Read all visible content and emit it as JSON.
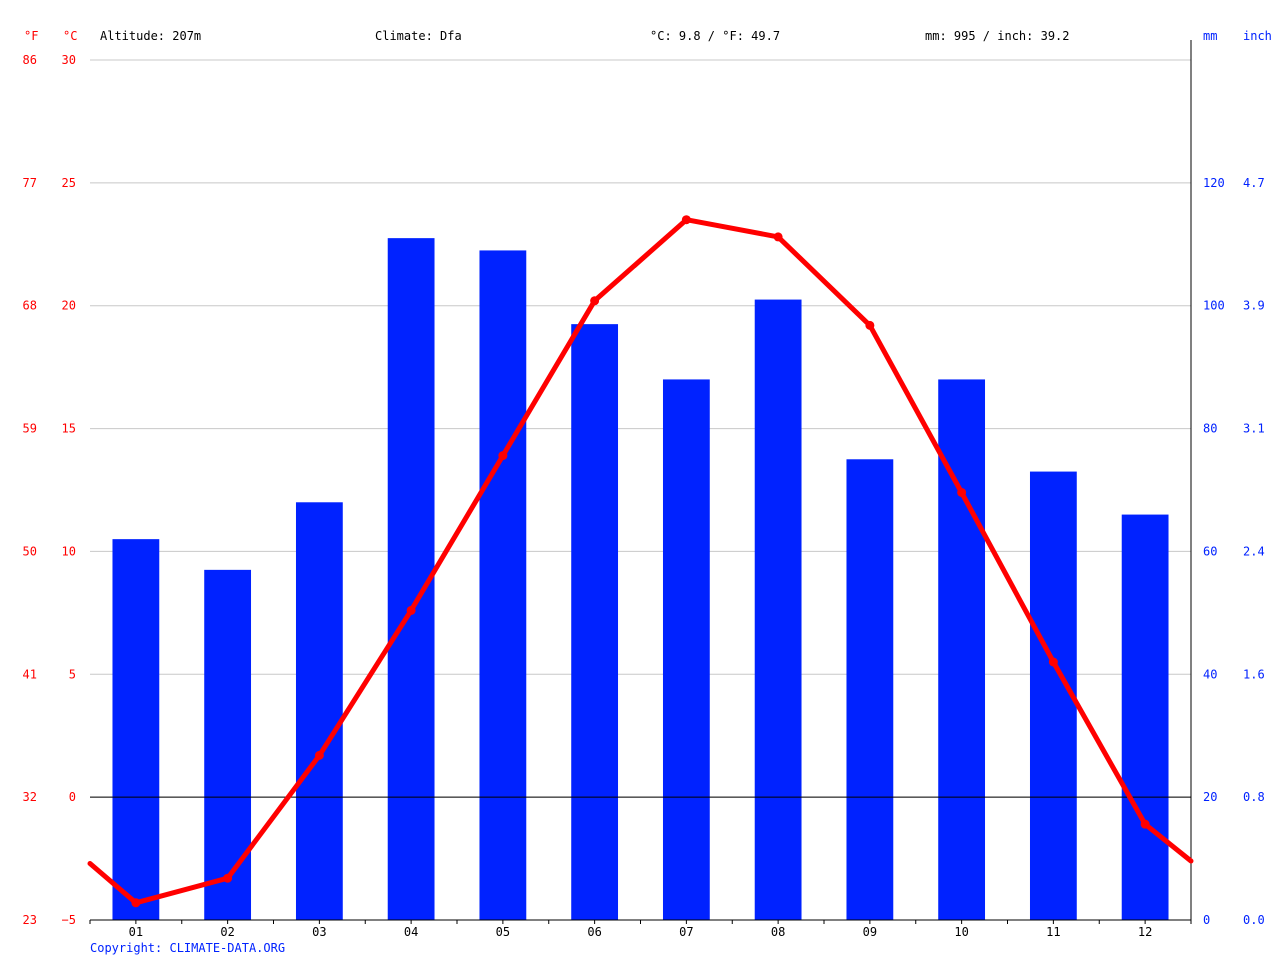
{
  "header": {
    "f_unit": "°F",
    "c_unit": "°C",
    "altitude": "Altitude: 207m",
    "climate": "Climate: Dfa",
    "temp_avg": "°C: 9.8 / °F: 49.7",
    "precip_total": "mm: 995 / inch: 39.2",
    "mm_unit": "mm",
    "inch_unit": "inch"
  },
  "copyright": "Copyright: CLIMATE-DATA.ORG",
  "colors": {
    "bars": "#0022ff",
    "temp_line": "#ff0000",
    "grid": "#c8c8c8",
    "zero_line": "#000000"
  },
  "chart_data": {
    "type": "bar",
    "categories": [
      "01",
      "02",
      "03",
      "04",
      "05",
      "06",
      "07",
      "08",
      "09",
      "10",
      "11",
      "12"
    ],
    "series": [
      {
        "type": "bar",
        "axis": "right",
        "values": [
          62,
          57,
          68,
          111,
          109,
          97,
          88,
          101,
          75,
          88,
          73,
          66
        ]
      },
      {
        "type": "line",
        "axis": "left",
        "values": [
          -4.3,
          -3.3,
          1.7,
          7.6,
          13.9,
          20.2,
          23.5,
          22.8,
          19.2,
          12.4,
          5.5,
          -1.1
        ],
        "edge_start": -2.7,
        "edge_end": -2.6
      }
    ],
    "y_left_celsius_ticks": [
      "30",
      "25",
      "20",
      "15",
      "10",
      "5",
      "0",
      "−5"
    ],
    "y_left_fahrenheit_ticks": [
      "86",
      "77",
      "68",
      "59",
      "50",
      "41",
      "32",
      "23"
    ],
    "y_right_mm_ticks": [
      "",
      "120",
      "100",
      "80",
      "60",
      "40",
      "20",
      "0"
    ],
    "y_right_inch_ticks": [
      "",
      "4.7",
      "3.9",
      "3.1",
      "2.4",
      "1.6",
      "0.8",
      "0.0"
    ],
    "ylim_left": [
      -5,
      30
    ],
    "ylim_right": [
      0,
      140
    ],
    "grid": true
  }
}
